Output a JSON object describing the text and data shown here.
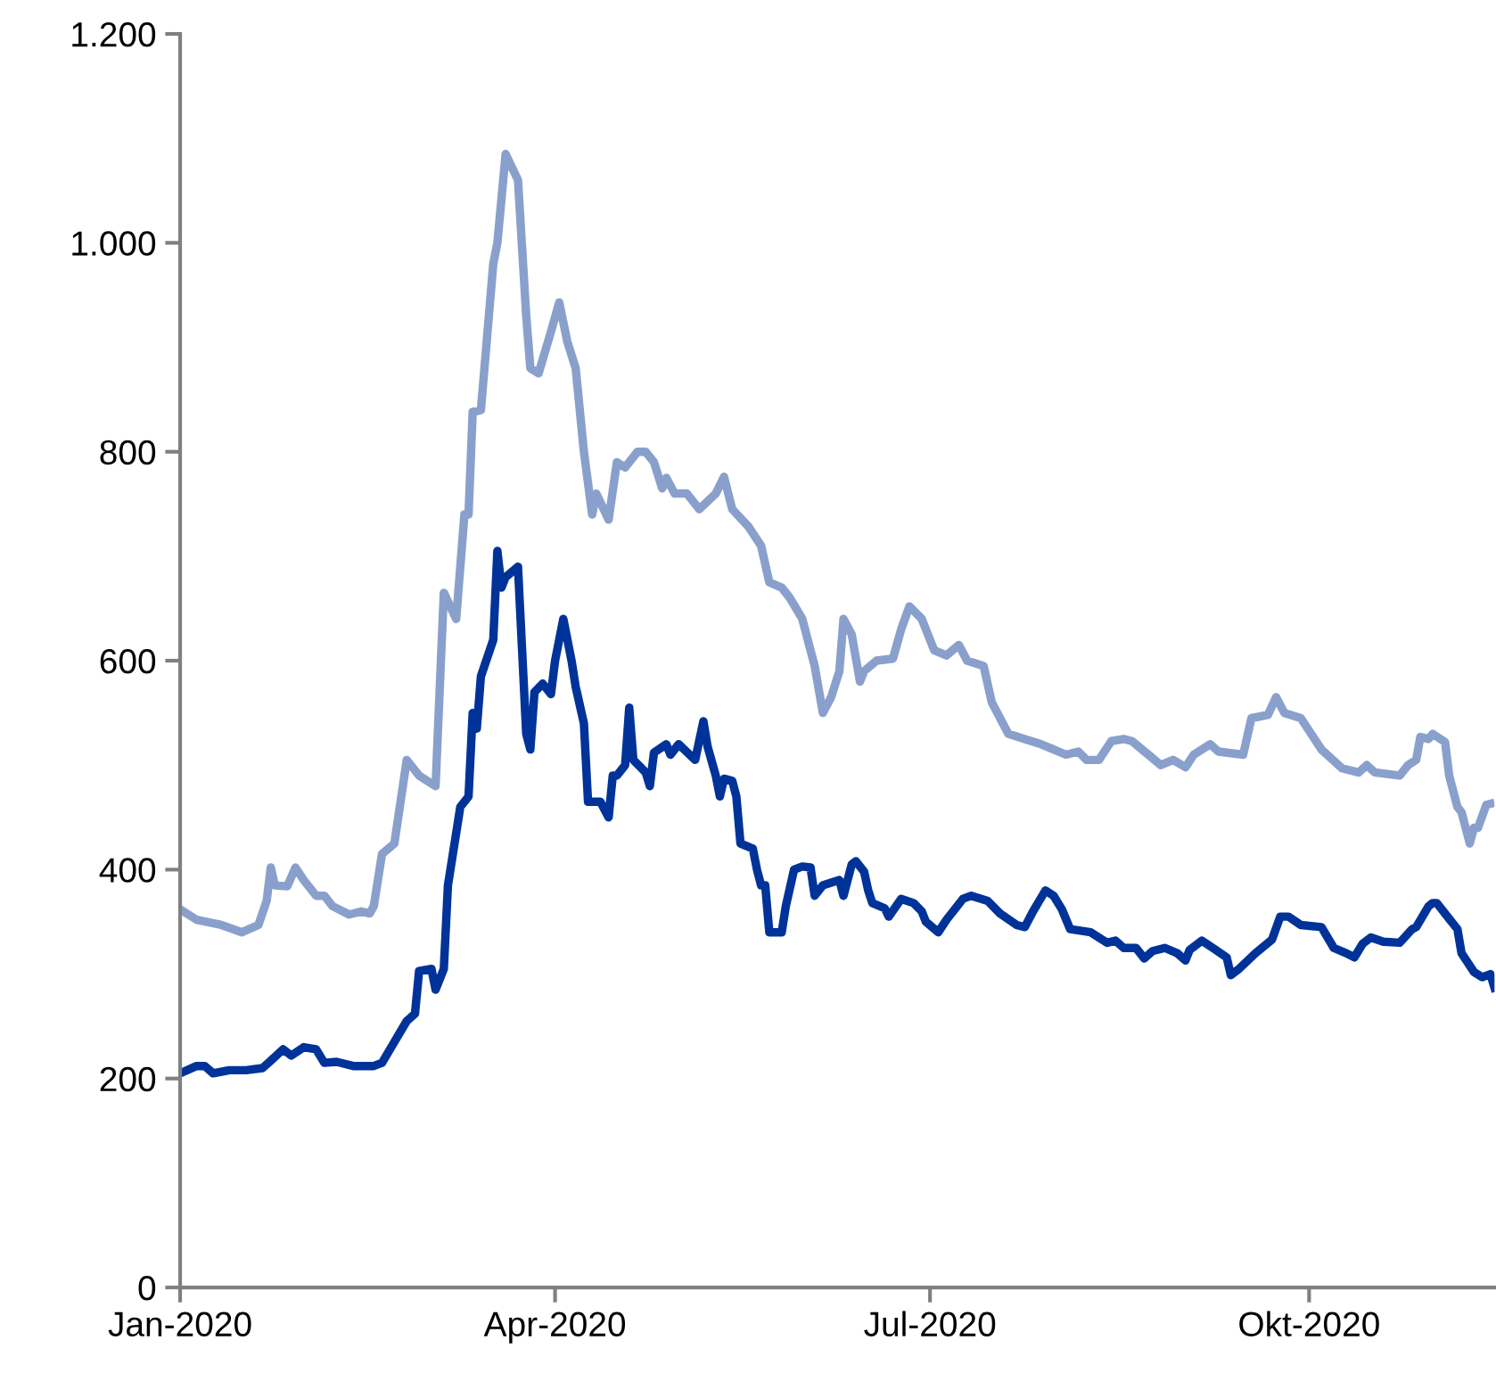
{
  "chart_data": {
    "type": "line",
    "xlim": [
      "2020-01-01",
      "2020-11-15"
    ],
    "xticks": [
      {
        "value": "2020-01-01",
        "label": "Jan-2020"
      },
      {
        "value": "2020-04-01",
        "label": "Apr-2020"
      },
      {
        "value": "2020-07-01",
        "label": "Jul-2020"
      },
      {
        "value": "2020-10-01",
        "label": "Okt-2020"
      }
    ],
    "ylim": [
      0,
      1200
    ],
    "yticks": [
      0,
      200,
      400,
      600,
      800,
      {
        "value": 1000,
        "label": "1.000"
      },
      {
        "value": 1200,
        "label": "1.200"
      }
    ],
    "grid": false,
    "marker": "none",
    "line_style": "solid",
    "series": [
      {
        "color": "#8aa0cc",
        "x": [
          "2020-01-01",
          "2020-01-05",
          "2020-01-11",
          "2020-01-16",
          "2020-01-20",
          "2020-01-22",
          "2020-01-23",
          "2020-01-24",
          "2020-01-27",
          "2020-01-29",
          "2020-01-31",
          "2020-02-03",
          "2020-02-05",
          "2020-02-07",
          "2020-02-11",
          "2020-02-14",
          "2020-02-16",
          "2020-02-17",
          "2020-02-19",
          "2020-02-22",
          "2020-02-25",
          "2020-02-28",
          "2020-03-03",
          "2020-03-05",
          "2020-03-08",
          "2020-03-10",
          "2020-03-11",
          "2020-03-12",
          "2020-03-14",
          "2020-03-17",
          "2020-03-18",
          "2020-03-20",
          "2020-03-23",
          "2020-03-25",
          "2020-03-26",
          "2020-03-28",
          "2020-03-31",
          "2020-04-02",
          "2020-04-04",
          "2020-04-06",
          "2020-04-08",
          "2020-04-10",
          "2020-04-11",
          "2020-04-14",
          "2020-04-16",
          "2020-04-18",
          "2020-04-21",
          "2020-04-23",
          "2020-04-25",
          "2020-04-27",
          "2020-04-28",
          "2020-04-30",
          "2020-05-03",
          "2020-05-06",
          "2020-05-10",
          "2020-05-12",
          "2020-05-14",
          "2020-05-18",
          "2020-05-21",
          "2020-05-23",
          "2020-05-26",
          "2020-05-28",
          "2020-05-31",
          "2020-06-02",
          "2020-06-03",
          "2020-06-05",
          "2020-06-07",
          "2020-06-09",
          "2020-06-10",
          "2020-06-12",
          "2020-06-14",
          "2020-06-15",
          "2020-06-18",
          "2020-06-22",
          "2020-06-24",
          "2020-06-26",
          "2020-06-29",
          "2020-07-02",
          "2020-07-05",
          "2020-07-08",
          "2020-07-10",
          "2020-07-14",
          "2020-07-16",
          "2020-07-20",
          "2020-07-24",
          "2020-07-28",
          "2020-07-31",
          "2020-08-03",
          "2020-08-06",
          "2020-08-08",
          "2020-08-11",
          "2020-08-14",
          "2020-08-17",
          "2020-08-19",
          "2020-08-23",
          "2020-08-26",
          "2020-08-29",
          "2020-09-01",
          "2020-09-03",
          "2020-09-07",
          "2020-09-09",
          "2020-09-15",
          "2020-09-17",
          "2020-09-21",
          "2020-09-23",
          "2020-09-25",
          "2020-09-29",
          "2020-10-04",
          "2020-10-09",
          "2020-10-13",
          "2020-10-15",
          "2020-10-17",
          "2020-10-23",
          "2020-10-25",
          "2020-10-27",
          "2020-10-28",
          "2020-10-30",
          "2020-10-31",
          "2020-11-03",
          "2020-11-04",
          "2020-11-06",
          "2020-11-07",
          "2020-11-09",
          "2020-11-10",
          "2020-11-11",
          "2020-11-13",
          "2020-11-14"
        ],
        "values": [
          362,
          352,
          347,
          340,
          347,
          370,
          402,
          385,
          384,
          402,
          390,
          375,
          375,
          365,
          357,
          360,
          358,
          365,
          415,
          425,
          505,
          490,
          480,
          665,
          640,
          740,
          740,
          838,
          840,
          980,
          1000,
          1085,
          1060,
          930,
          880,
          875,
          915,
          943,
          905,
          880,
          800,
          740,
          760,
          735,
          790,
          785,
          800,
          800,
          790,
          765,
          775,
          760,
          760,
          745,
          760,
          776,
          745,
          728,
          710,
          675,
          670,
          660,
          640,
          610,
          595,
          550,
          565,
          590,
          640,
          625,
          580,
          590,
          600,
          602,
          630,
          652,
          640,
          610,
          605,
          615,
          600,
          595,
          560,
          530,
          525,
          520,
          515,
          510,
          513,
          505,
          505,
          523,
          525,
          523,
          510,
          500,
          505,
          498,
          510,
          520,
          513,
          510,
          545,
          548,
          565,
          550,
          545,
          515,
          497,
          493,
          500,
          493,
          490,
          500,
          505,
          527,
          525,
          530,
          522,
          490,
          460,
          455,
          425,
          440,
          440,
          462,
          463
        ]
      },
      {
        "color": "#003399",
        "x": [
          "2020-01-01",
          "2020-01-05",
          "2020-01-07",
          "2020-01-09",
          "2020-01-13",
          "2020-01-17",
          "2020-01-21",
          "2020-01-23",
          "2020-01-26",
          "2020-01-28",
          "2020-01-31",
          "2020-02-03",
          "2020-02-05",
          "2020-02-08",
          "2020-02-12",
          "2020-02-17",
          "2020-02-19",
          "2020-02-22",
          "2020-02-25",
          "2020-02-27",
          "2020-02-28",
          "2020-03-02",
          "2020-03-03",
          "2020-03-05",
          "2020-03-06",
          "2020-03-09",
          "2020-03-11",
          "2020-03-12",
          "2020-03-13",
          "2020-03-14",
          "2020-03-17",
          "2020-03-18",
          "2020-03-19",
          "2020-03-20",
          "2020-03-23",
          "2020-03-24",
          "2020-03-25",
          "2020-03-26",
          "2020-03-27",
          "2020-03-29",
          "2020-03-31",
          "2020-04-01",
          "2020-04-03",
          "2020-04-05",
          "2020-04-06",
          "2020-04-08",
          "2020-04-09",
          "2020-04-12",
          "2020-04-14",
          "2020-04-15",
          "2020-04-16",
          "2020-04-18",
          "2020-04-19",
          "2020-04-20",
          "2020-04-23",
          "2020-04-24",
          "2020-04-25",
          "2020-04-28",
          "2020-04-29",
          "2020-05-01",
          "2020-05-05",
          "2020-05-07",
          "2020-05-08",
          "2020-05-10",
          "2020-05-11",
          "2020-05-12",
          "2020-05-14",
          "2020-05-15",
          "2020-05-16",
          "2020-05-19",
          "2020-05-20",
          "2020-05-21",
          "2020-05-22",
          "2020-05-23",
          "2020-05-26",
          "2020-05-27",
          "2020-05-29",
          "2020-05-31",
          "2020-06-02",
          "2020-06-03",
          "2020-06-05",
          "2020-06-09",
          "2020-06-10",
          "2020-06-12",
          "2020-06-13",
          "2020-06-15",
          "2020-06-16",
          "2020-06-17",
          "2020-06-20",
          "2020-06-21",
          "2020-06-24",
          "2020-06-27",
          "2020-06-29",
          "2020-06-30",
          "2020-07-03",
          "2020-07-05",
          "2020-07-07",
          "2020-07-09",
          "2020-07-11",
          "2020-07-15",
          "2020-07-18",
          "2020-07-22",
          "2020-07-24",
          "2020-07-26",
          "2020-07-29",
          "2020-07-31",
          "2020-08-02",
          "2020-08-04",
          "2020-08-09",
          "2020-08-13",
          "2020-08-15",
          "2020-08-17",
          "2020-08-20",
          "2020-08-22",
          "2020-08-24",
          "2020-08-27",
          "2020-08-30",
          "2020-09-01",
          "2020-09-02",
          "2020-09-05",
          "2020-09-08",
          "2020-09-11",
          "2020-09-12",
          "2020-09-14",
          "2020-09-18",
          "2020-09-22",
          "2020-09-24",
          "2020-09-26",
          "2020-09-29",
          "2020-10-04",
          "2020-10-07",
          "2020-10-10",
          "2020-10-12",
          "2020-10-14",
          "2020-10-16",
          "2020-10-19",
          "2020-10-23",
          "2020-10-26",
          "2020-10-27",
          "2020-10-30",
          "2020-10-31",
          "2020-11-01",
          "2020-11-04",
          "2020-11-06",
          "2020-11-07",
          "2020-11-10",
          "2020-11-12",
          "2020-11-14",
          "2020-11-15"
        ],
        "values": [
          205,
          212,
          212,
          205,
          208,
          208,
          210,
          217,
          228,
          222,
          230,
          228,
          215,
          216,
          212,
          212,
          215,
          235,
          255,
          262,
          303,
          305,
          285,
          305,
          385,
          460,
          470,
          550,
          535,
          585,
          620,
          705,
          670,
          680,
          690,
          610,
          530,
          515,
          570,
          578,
          568,
          600,
          640,
          600,
          575,
          540,
          465,
          465,
          450,
          490,
          490,
          500,
          555,
          505,
          493,
          480,
          512,
          520,
          510,
          520,
          505,
          542,
          518,
          490,
          470,
          487,
          485,
          470,
          425,
          420,
          400,
          385,
          385,
          340,
          340,
          365,
          400,
          403,
          402,
          375,
          385,
          390,
          375,
          405,
          408,
          398,
          380,
          368,
          363,
          355,
          372,
          368,
          360,
          350,
          340,
          352,
          362,
          372,
          375,
          370,
          358,
          347,
          345,
          360,
          380,
          375,
          362,
          343,
          340,
          330,
          332,
          325,
          325,
          315,
          322,
          325,
          320,
          313,
          323,
          332,
          324,
          316,
          299,
          305,
          320,
          333,
          355,
          355,
          347,
          345,
          325,
          320,
          316,
          329,
          335,
          331,
          330,
          343,
          345,
          365,
          368,
          368,
          353,
          343,
          320,
          302,
          297,
          300,
          287
        ]
      }
    ]
  }
}
